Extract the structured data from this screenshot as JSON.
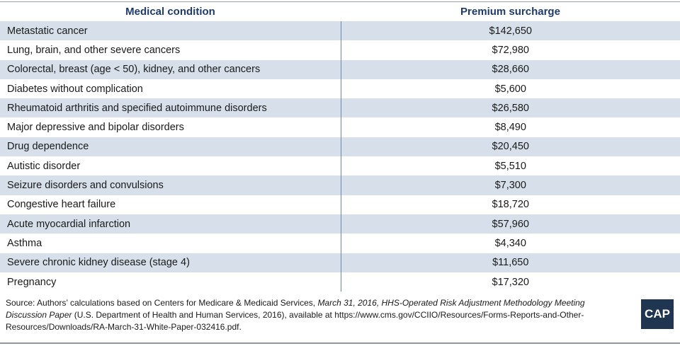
{
  "table": {
    "header": [
      "Medical condition",
      "Premium surcharge"
    ],
    "rows": [
      [
        "Metastatic cancer",
        "$142,650"
      ],
      [
        "Lung, brain, and other severe cancers",
        "$72,980"
      ],
      [
        "Colorectal, breast (age < 50), kidney, and other cancers",
        "$28,660"
      ],
      [
        "Diabetes without complication",
        "$5,600"
      ],
      [
        "Rheumatoid arthritis and specified autoimmune disorders",
        "$26,580"
      ],
      [
        "Major depressive and bipolar disorders",
        "$8,490"
      ],
      [
        "Drug dependence",
        "$20,450"
      ],
      [
        "Autistic disorder",
        "$5,510"
      ],
      [
        "Seizure disorders and convulsions",
        "$7,300"
      ],
      [
        "Congestive heart failure",
        "$18,720"
      ],
      [
        "Acute myocardial infarction",
        "$57,960"
      ],
      [
        "Asthma",
        "$4,340"
      ],
      [
        "Severe chronic kidney disease (stage 4)",
        "$11,650"
      ],
      [
        "Pregnancy",
        "$17,320"
      ]
    ]
  },
  "source": [
    {
      "text": "Source: Authors’ calculations based on Centers for Medicare & Medicaid Services, ",
      "italic": false
    },
    {
      "text": "March 31, 2016, HHS-Operated Risk Adjustment Methodology Meeting Discussion Paper",
      "italic": true
    },
    {
      "text": " (U.S. Department of Health and Human Services, 2016), available at https://www.cms.gov/CCIIO/Resources/Forms-Reports-and-Other-Resources/Downloads/RA-March-31-White-Paper-032416.pdf.",
      "italic": false
    }
  ],
  "logo": "CAP"
}
